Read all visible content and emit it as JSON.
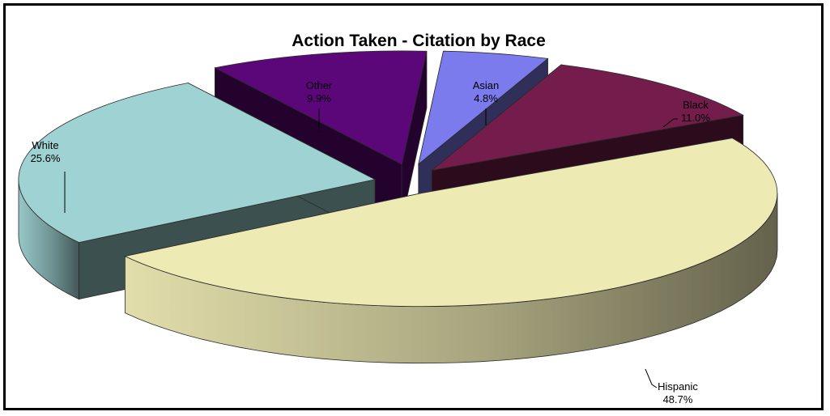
{
  "chart_data": {
    "type": "pie",
    "title": "Action Taken - Citation by Race",
    "three_d": true,
    "exploded": true,
    "slices": [
      {
        "name": "Asian",
        "pct_label": "4.8%",
        "value": 4.8,
        "color": "#7b7bee"
      },
      {
        "name": "Black",
        "pct_label": "11.0%",
        "value": 11.0,
        "color": "#741d4c"
      },
      {
        "name": "Hispanic",
        "pct_label": "48.7%",
        "value": 48.7,
        "color": "#eeeab4"
      },
      {
        "name": "White",
        "pct_label": "25.6%",
        "value": 25.6,
        "color": "#9fd2d2"
      },
      {
        "name": "Other",
        "pct_label": "9.9%",
        "value": 9.9,
        "color": "#5b0779"
      }
    ]
  }
}
